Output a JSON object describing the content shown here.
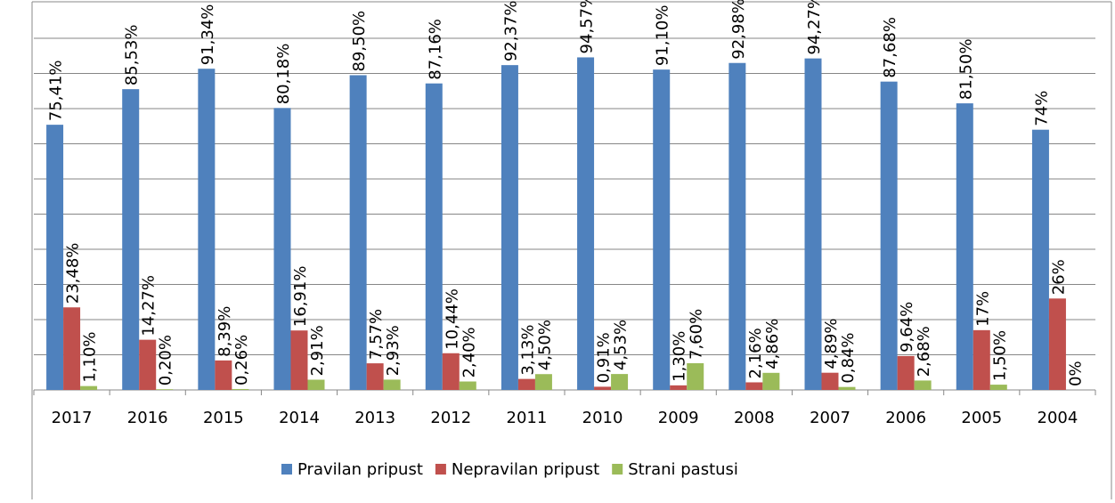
{
  "chart_data": {
    "type": "bar",
    "categories": [
      "2017",
      "2016",
      "2015",
      "2014",
      "2013",
      "2012",
      "2011",
      "2010",
      "2009",
      "2008",
      "2007",
      "2006",
      "2005",
      "2004"
    ],
    "series": [
      {
        "name": "Pravilan pripust",
        "color": "#4f81bd",
        "values": [
          75.41,
          85.53,
          91.34,
          80.18,
          89.5,
          87.16,
          92.37,
          94.57,
          91.1,
          92.98,
          94.27,
          87.68,
          81.5,
          74
        ],
        "value_labels": [
          "75,41%",
          "85,53%",
          "91,34%",
          "80,18%",
          "89,50%",
          "87,16%",
          "92,37%",
          "94,57%",
          "91,10%",
          "92,98%",
          "94,27%",
          "87,68%",
          "81,50%",
          "74%"
        ]
      },
      {
        "name": "Nepravilan pripust",
        "color": "#c0504d",
        "values": [
          23.48,
          14.27,
          8.39,
          16.91,
          7.57,
          10.44,
          3.13,
          0.91,
          1.3,
          2.16,
          4.89,
          9.64,
          17,
          26
        ],
        "value_labels": [
          "23,48%",
          "14,27%",
          "8,39%",
          "16,91%",
          "7,57%",
          "10,44%",
          "3,13%",
          "0,91%",
          "1,30%",
          "2,16%",
          "4,89%",
          "9,64%",
          "17%",
          "26%"
        ]
      },
      {
        "name": "Strani pastusi",
        "color": "#9bbb59",
        "values": [
          1.1,
          0.2,
          0.26,
          2.91,
          2.93,
          2.4,
          4.5,
          4.53,
          7.6,
          4.86,
          0.84,
          2.68,
          1.5,
          0
        ],
        "value_labels": [
          "1,10%",
          "0,20%",
          "0,26%",
          "2,91%",
          "2,93%",
          "2,40%",
          "4,50%",
          "4,53%",
          "7,60%",
          "4,86%",
          "0,84%",
          "2,68%",
          "1,50%",
          "0%"
        ]
      }
    ],
    "ylim": [
      0,
      100
    ],
    "yticks": [
      0,
      10,
      20,
      30,
      40,
      50,
      60,
      70,
      80,
      90,
      100
    ],
    "grid": true,
    "legend": "bottom"
  }
}
